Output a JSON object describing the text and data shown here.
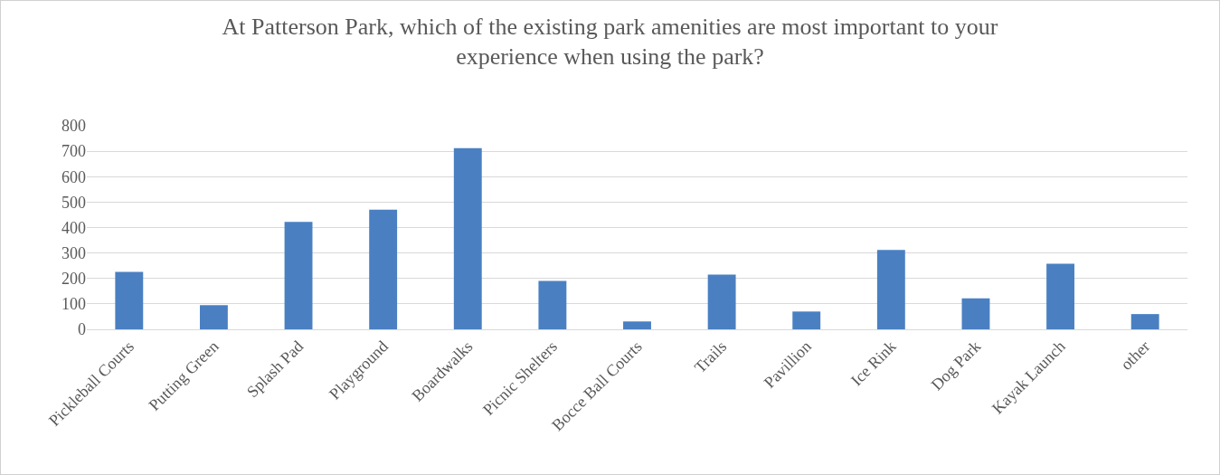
{
  "chart_data": {
    "type": "bar",
    "title": "At Patterson Park, which of the existing park amenities are most important to your experience when using the park?",
    "categories": [
      "Pickleball Courts",
      "Putting Green",
      "Splash Pad",
      "Playground",
      "Boardwalks",
      "Picnic Shelters",
      "Bocce Ball Courts",
      "Trails",
      "Pavillion",
      "Ice Rink",
      "Dog Park",
      "Kayak Launch",
      "other"
    ],
    "values": [
      226,
      95,
      422,
      470,
      712,
      190,
      31,
      215,
      70,
      312,
      122,
      258,
      60
    ],
    "color": "#4a80c2",
    "ylim": [
      0,
      800
    ],
    "yticks": [
      0,
      100,
      200,
      300,
      400,
      500,
      600,
      700,
      800
    ],
    "grid": "y",
    "legend": false
  }
}
